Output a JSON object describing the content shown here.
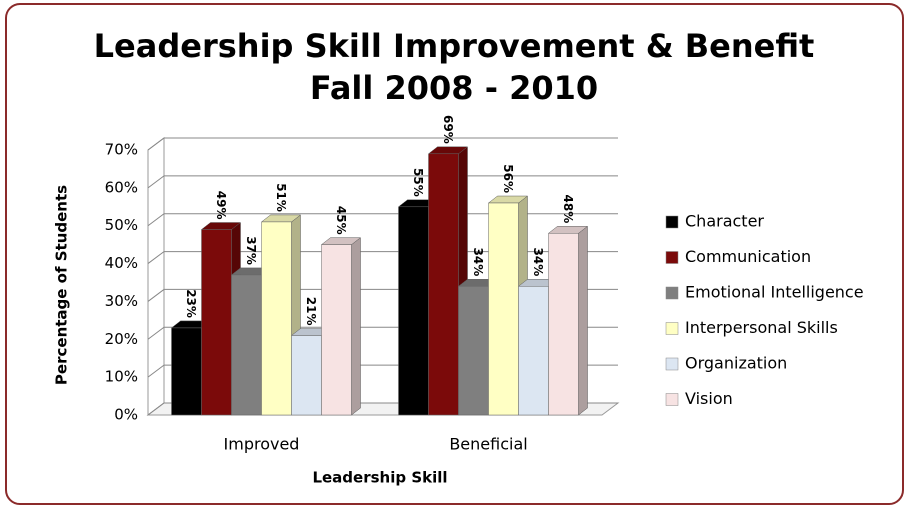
{
  "chart_data": {
    "type": "bar",
    "title": "Leadership Skill Improvement & Benefit",
    "subtitle": "Fall 2008 - 2010",
    "x_label": "Leadership Skill",
    "y_label": "Percentage of Students",
    "categories": [
      "Improved",
      "Beneficial"
    ],
    "series": [
      {
        "name": "Character",
        "color": "#000000",
        "values": [
          23,
          55
        ],
        "value_labels": [
          "23%",
          "55%"
        ]
      },
      {
        "name": "Communication",
        "color": "#7b0a0a",
        "values": [
          49,
          69
        ],
        "value_labels": [
          "49%",
          "69%"
        ]
      },
      {
        "name": "Emotional Intelligence",
        "color": "#7f7f7f",
        "values": [
          37,
          34
        ],
        "value_labels": [
          "37%",
          "34%"
        ]
      },
      {
        "name": "Interpersonal Skills",
        "color": "#ffffc4",
        "values": [
          51,
          56
        ],
        "value_labels": [
          "51%",
          "56%"
        ]
      },
      {
        "name": "Organization",
        "color": "#dce6f2",
        "values": [
          21,
          34
        ],
        "value_labels": [
          "21%",
          "34%"
        ]
      },
      {
        "name": "Vision",
        "color": "#f7e3e3",
        "values": [
          45,
          48
        ],
        "value_labels": [
          "45%",
          "48%"
        ]
      }
    ],
    "ylim": [
      0,
      70
    ],
    "yticks": [
      {
        "value": 0,
        "label": "0%"
      },
      {
        "value": 10,
        "label": "10%"
      },
      {
        "value": 20,
        "label": "20%"
      },
      {
        "value": 30,
        "label": "30%"
      },
      {
        "value": 40,
        "label": "40%"
      },
      {
        "value": 50,
        "label": "50%"
      },
      {
        "value": 60,
        "label": "60%"
      },
      {
        "value": 70,
        "label": "70%"
      }
    ],
    "grid": true,
    "legend": "right"
  }
}
